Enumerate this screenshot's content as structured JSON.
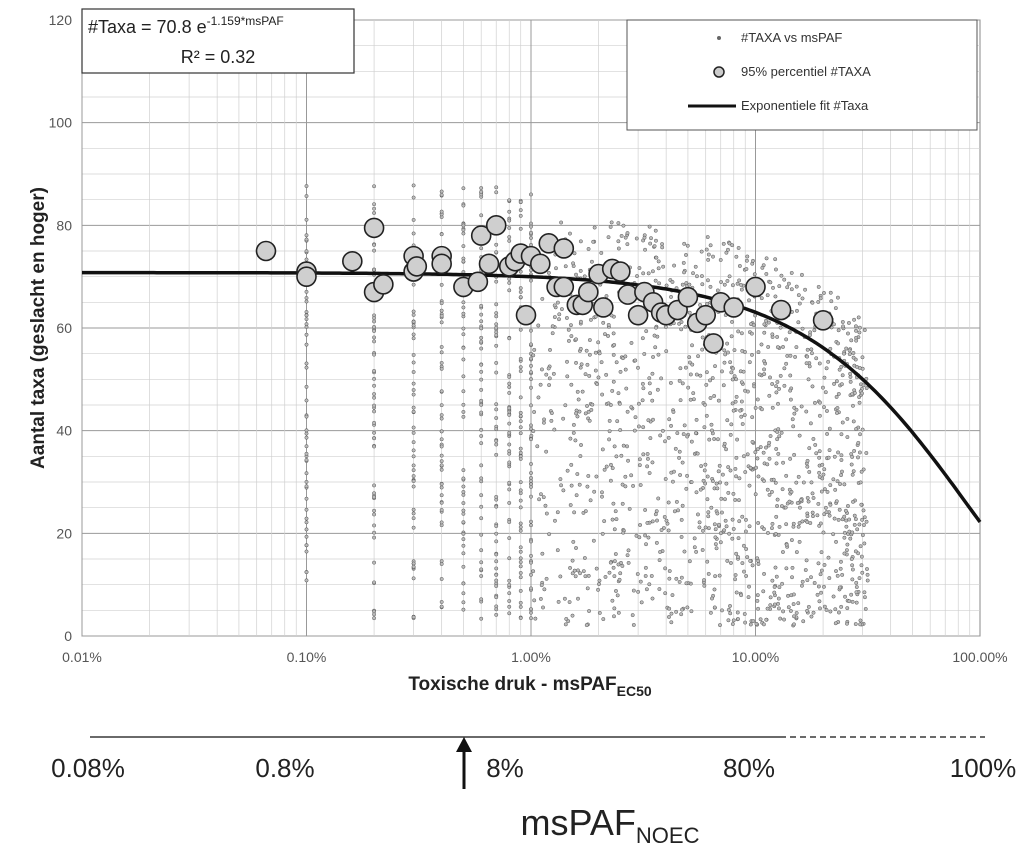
{
  "chart_data": {
    "type": "scatter",
    "x_scale": "log",
    "xlim": [
      0.0001,
      1
    ],
    "ylim": [
      0,
      120
    ],
    "y_ticks": [
      0,
      20,
      40,
      60,
      80,
      100,
      120
    ],
    "x_ticks": [
      {
        "value": 0.0001,
        "label": "0.01%"
      },
      {
        "value": 0.001,
        "label": "0.10%"
      },
      {
        "value": 0.01,
        "label": "1.00%"
      },
      {
        "value": 0.1,
        "label": "10.00%"
      },
      {
        "value": 1,
        "label": "100.00%"
      }
    ],
    "ylabel": "Aantal taxa (geslacht en hoger)",
    "xlabel_main": "Toxische druk - msPAF",
    "xlabel_sub": "EC50",
    "grid": true,
    "equation": {
      "base": "#Taxa = 70.8 e",
      "exponent": "-1.159*msPAF",
      "r2": "R² = 0.32"
    },
    "legend": {
      "placement": "top-right",
      "items": [
        {
          "label": "#TAXA vs msPAF",
          "marker": "small-dot"
        },
        {
          "label": "95% percentiel #TAXA",
          "marker": "large-circle"
        },
        {
          "label": "Exponentiele fit #Taxa",
          "marker": "line"
        }
      ]
    },
    "fit": {
      "a": 70.8,
      "b": -1.159
    },
    "series": [
      {
        "name": "95% percentiel #TAXA",
        "points": [
          [
            0.00066,
            75
          ],
          [
            0.001,
            71
          ],
          [
            0.001,
            70
          ],
          [
            0.0016,
            73
          ],
          [
            0.002,
            79.5
          ],
          [
            0.002,
            67
          ],
          [
            0.0022,
            68.5
          ],
          [
            0.003,
            74
          ],
          [
            0.003,
            71
          ],
          [
            0.0031,
            72
          ],
          [
            0.004,
            74
          ],
          [
            0.004,
            72.5
          ],
          [
            0.005,
            68
          ],
          [
            0.0058,
            69
          ],
          [
            0.006,
            78
          ],
          [
            0.0065,
            72.5
          ],
          [
            0.007,
            80
          ],
          [
            0.008,
            72
          ],
          [
            0.0085,
            73
          ],
          [
            0.009,
            74.5
          ],
          [
            0.0095,
            62.5
          ],
          [
            0.01,
            74
          ],
          [
            0.011,
            72.5
          ],
          [
            0.012,
            76.5
          ],
          [
            0.013,
            68
          ],
          [
            0.014,
            68
          ],
          [
            0.014,
            75.5
          ],
          [
            0.016,
            64.5
          ],
          [
            0.017,
            64.5
          ],
          [
            0.018,
            67
          ],
          [
            0.02,
            70.5
          ],
          [
            0.021,
            64
          ],
          [
            0.023,
            71.5
          ],
          [
            0.025,
            71
          ],
          [
            0.027,
            66.5
          ],
          [
            0.03,
            62.5
          ],
          [
            0.032,
            67
          ],
          [
            0.035,
            65
          ],
          [
            0.038,
            63
          ],
          [
            0.04,
            62.5
          ],
          [
            0.045,
            63.5
          ],
          [
            0.05,
            66
          ],
          [
            0.055,
            61
          ],
          [
            0.06,
            62.5
          ],
          [
            0.065,
            57
          ],
          [
            0.07,
            65
          ],
          [
            0.08,
            64
          ],
          [
            0.1,
            68
          ],
          [
            0.13,
            63.5
          ],
          [
            0.2,
            61.5
          ]
        ]
      }
    ]
  },
  "noec_axis": {
    "ticks": [
      "0.08%",
      "0.8%",
      "8%",
      "80%",
      "100%"
    ],
    "title": "msPAF",
    "title_sub": "NOEC"
  }
}
